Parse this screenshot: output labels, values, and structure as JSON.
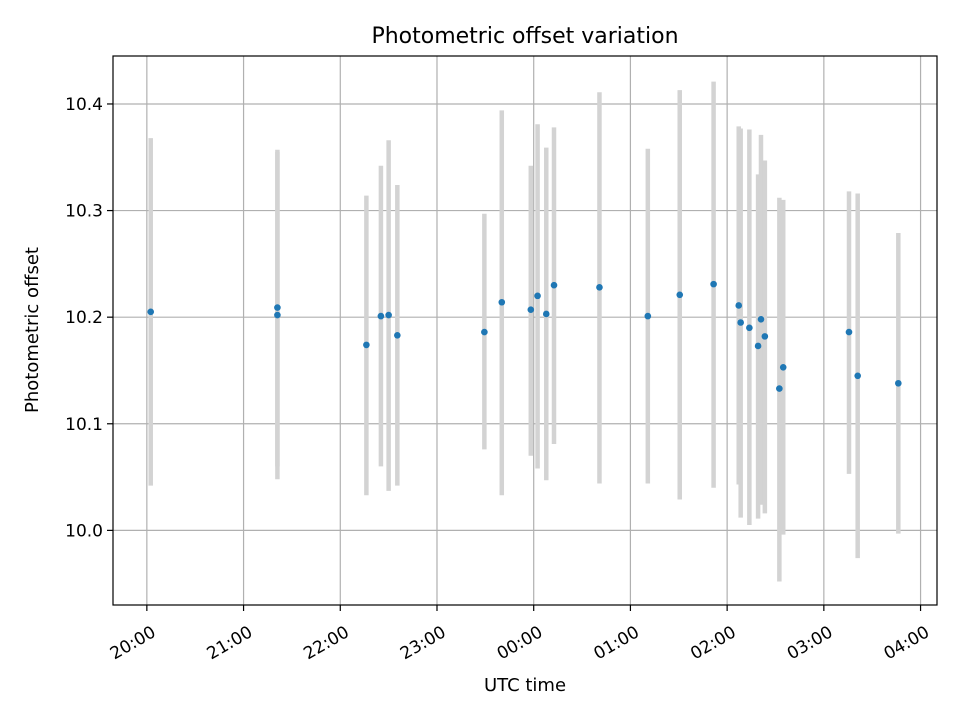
{
  "chart_data": {
    "type": "scatter",
    "title": "Photometric offset variation",
    "xlabel": "UTC time",
    "ylabel": "Photometric offset",
    "x_unit": "hours (UTC, continuing past midnight)",
    "xlim": [
      19.65,
      28.17
    ],
    "ylim": [
      9.93,
      10.445
    ],
    "x_ticks": [
      {
        "value": 20,
        "label": "20:00"
      },
      {
        "value": 21,
        "label": "21:00"
      },
      {
        "value": 22,
        "label": "22:00"
      },
      {
        "value": 23,
        "label": "23:00"
      },
      {
        "value": 24,
        "label": "00:00"
      },
      {
        "value": 25,
        "label": "01:00"
      },
      {
        "value": 26,
        "label": "02:00"
      },
      {
        "value": 27,
        "label": "03:00"
      },
      {
        "value": 28,
        "label": "04:00"
      }
    ],
    "y_ticks": [
      {
        "value": 10.0,
        "label": "10.0"
      },
      {
        "value": 10.1,
        "label": "10.1"
      },
      {
        "value": 10.2,
        "label": "10.2"
      },
      {
        "value": 10.3,
        "label": "10.3"
      },
      {
        "value": 10.4,
        "label": "10.4"
      }
    ],
    "grid": true,
    "point_color": "#1f77b4",
    "errorbar_color": "#d3d3d3",
    "points": [
      {
        "x": 20.04,
        "y": 10.205,
        "ylow": 10.042,
        "yhigh": 10.368
      },
      {
        "x": 21.35,
        "y": 10.209,
        "ylow": 10.06,
        "yhigh": 10.357
      },
      {
        "x": 21.35,
        "y": 10.202,
        "ylow": 10.048,
        "yhigh": 10.355
      },
      {
        "x": 22.27,
        "y": 10.174,
        "ylow": 10.033,
        "yhigh": 10.314
      },
      {
        "x": 22.42,
        "y": 10.201,
        "ylow": 10.06,
        "yhigh": 10.342
      },
      {
        "x": 22.5,
        "y": 10.202,
        "ylow": 10.037,
        "yhigh": 10.366
      },
      {
        "x": 22.59,
        "y": 10.183,
        "ylow": 10.042,
        "yhigh": 10.324
      },
      {
        "x": 23.49,
        "y": 10.186,
        "ylow": 10.076,
        "yhigh": 10.297
      },
      {
        "x": 23.67,
        "y": 10.214,
        "ylow": 10.033,
        "yhigh": 10.394
      },
      {
        "x": 23.97,
        "y": 10.207,
        "ylow": 10.07,
        "yhigh": 10.342
      },
      {
        "x": 24.04,
        "y": 10.22,
        "ylow": 10.058,
        "yhigh": 10.381
      },
      {
        "x": 24.13,
        "y": 10.203,
        "ylow": 10.047,
        "yhigh": 10.359
      },
      {
        "x": 24.21,
        "y": 10.23,
        "ylow": 10.081,
        "yhigh": 10.378
      },
      {
        "x": 24.68,
        "y": 10.228,
        "ylow": 10.044,
        "yhigh": 10.411
      },
      {
        "x": 25.18,
        "y": 10.201,
        "ylow": 10.044,
        "yhigh": 10.358
      },
      {
        "x": 25.51,
        "y": 10.221,
        "ylow": 10.029,
        "yhigh": 10.413
      },
      {
        "x": 25.86,
        "y": 10.231,
        "ylow": 10.04,
        "yhigh": 10.421
      },
      {
        "x": 26.12,
        "y": 10.211,
        "ylow": 10.043,
        "yhigh": 10.379
      },
      {
        "x": 26.14,
        "y": 10.195,
        "ylow": 10.012,
        "yhigh": 10.377
      },
      {
        "x": 26.23,
        "y": 10.19,
        "ylow": 10.005,
        "yhigh": 10.376
      },
      {
        "x": 26.32,
        "y": 10.173,
        "ylow": 10.011,
        "yhigh": 10.334
      },
      {
        "x": 26.35,
        "y": 10.198,
        "ylow": 10.024,
        "yhigh": 10.371
      },
      {
        "x": 26.39,
        "y": 10.182,
        "ylow": 10.016,
        "yhigh": 10.347
      },
      {
        "x": 26.54,
        "y": 10.133,
        "ylow": 9.952,
        "yhigh": 10.312
      },
      {
        "x": 26.58,
        "y": 10.153,
        "ylow": 9.996,
        "yhigh": 10.31
      },
      {
        "x": 27.26,
        "y": 10.186,
        "ylow": 10.053,
        "yhigh": 10.318
      },
      {
        "x": 27.35,
        "y": 10.145,
        "ylow": 9.974,
        "yhigh": 10.316
      },
      {
        "x": 27.77,
        "y": 10.138,
        "ylow": 9.997,
        "yhigh": 10.279
      }
    ]
  }
}
